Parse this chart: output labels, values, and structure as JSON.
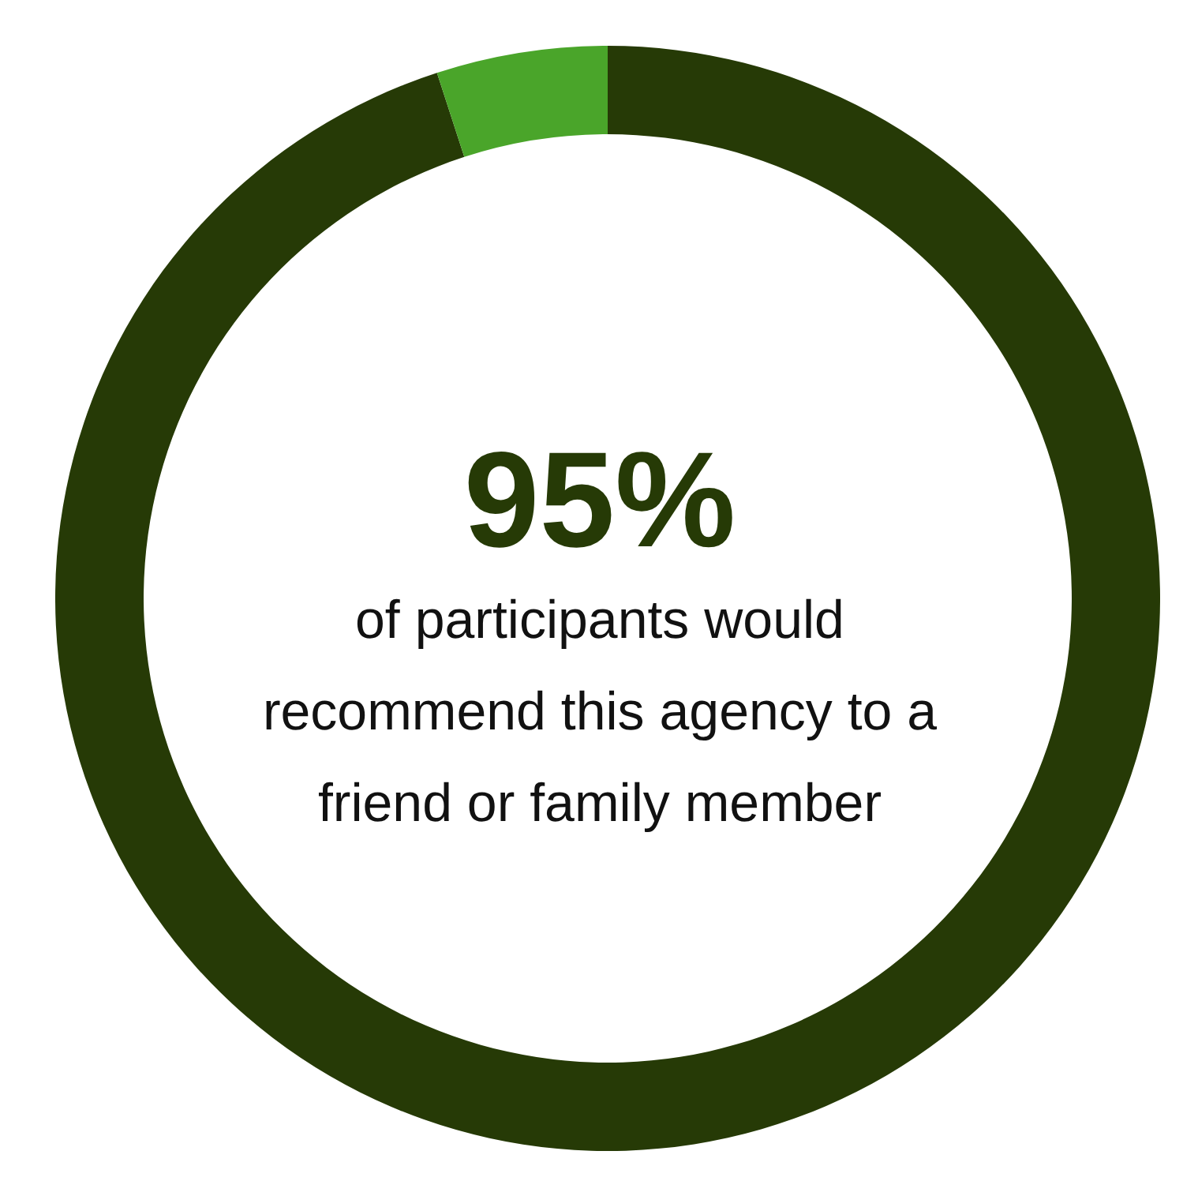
{
  "chart_data": {
    "type": "donut",
    "categories": [
      null,
      null
    ],
    "values": [
      95,
      5
    ],
    "colors": [
      "#263a06",
      "#4aa52a"
    ],
    "value_labels": [
      "95%",
      null
    ],
    "annotations": [
      "of participants would recommend this agency to a friend or family member"
    ]
  }
}
